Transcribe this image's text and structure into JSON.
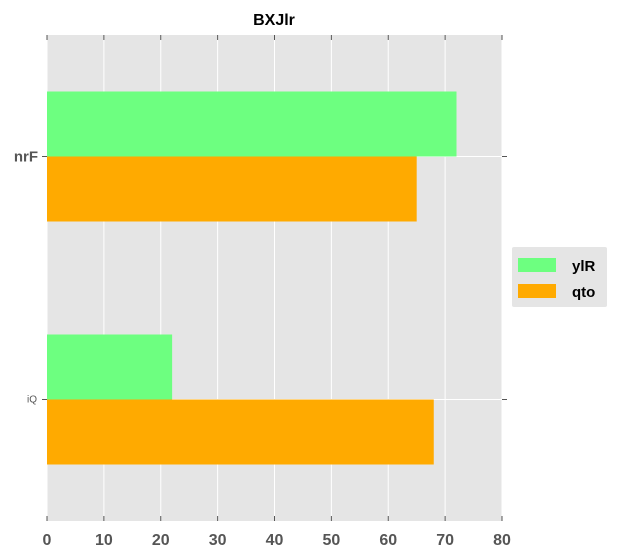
{
  "chart_data": {
    "type": "bar",
    "orientation": "horizontal",
    "title": "BXJlr",
    "xlabel": "",
    "ylabel": "",
    "categories": [
      "nrF",
      "iQ"
    ],
    "series": [
      {
        "name": "ylR",
        "values": [
          72,
          22
        ],
        "color": "#6dff80"
      },
      {
        "name": "qto",
        "values": [
          65,
          68
        ],
        "color": "#ffaa00"
      }
    ],
    "xlim": [
      0,
      80
    ],
    "xticks": [
      "0",
      "10",
      "20",
      "30",
      "40",
      "50",
      "60",
      "70",
      "80"
    ],
    "grid": true,
    "legend_position": "right",
    "background": "#e5e5e5"
  }
}
